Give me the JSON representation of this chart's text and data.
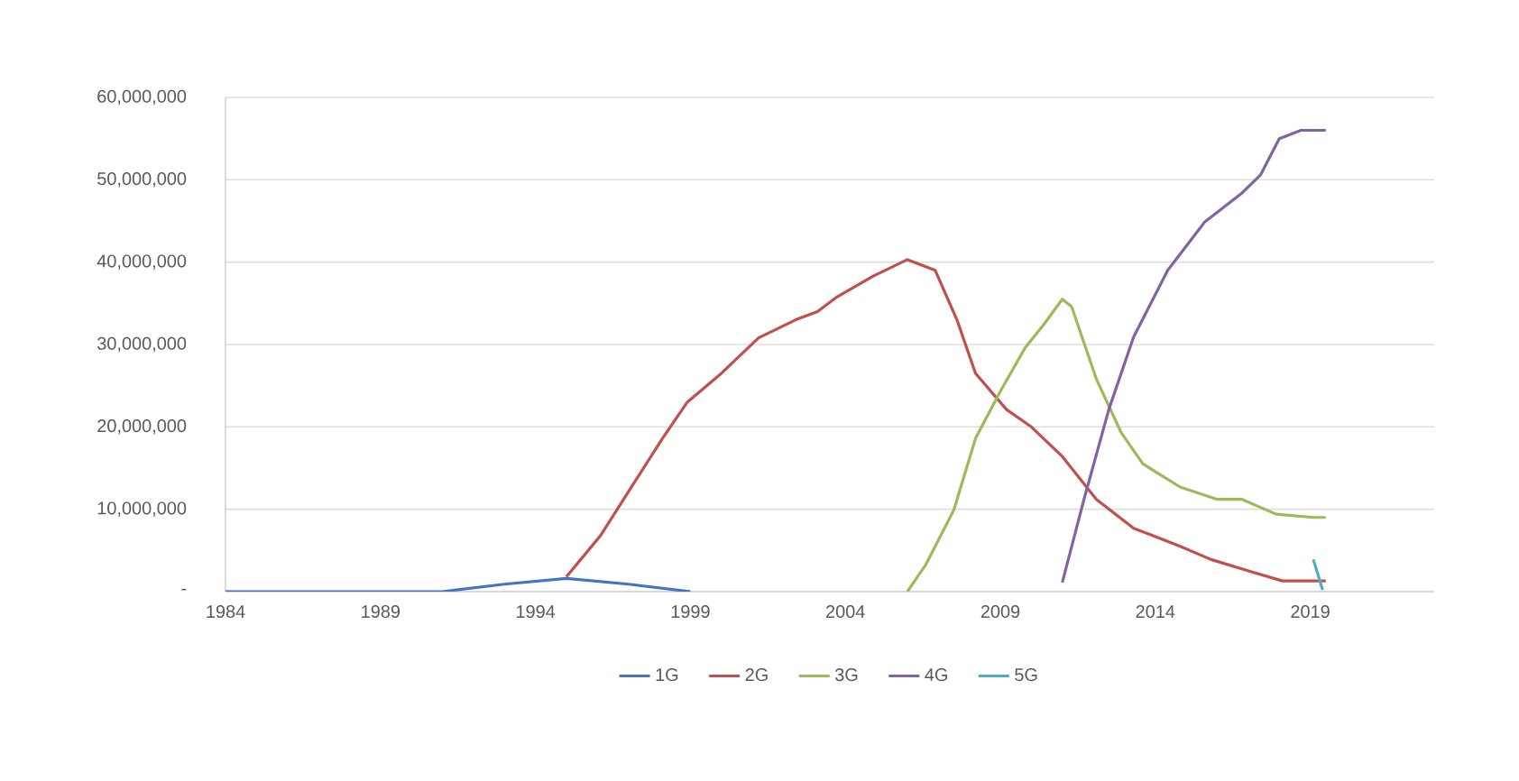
{
  "chart_data": {
    "type": "line",
    "xlim": [
      1984,
      2023
    ],
    "xticks": [
      1984,
      1989,
      1994,
      1999,
      2004,
      2009,
      2014,
      2019
    ],
    "ylim": [
      0,
      60000000
    ],
    "yticks": [
      {
        "value": 0,
        "label": "-"
      },
      {
        "value": 10000000,
        "label": "10,000,000"
      },
      {
        "value": 20000000,
        "label": "20,000,000"
      },
      {
        "value": 30000000,
        "label": "30,000,000"
      },
      {
        "value": 40000000,
        "label": "40,000,000"
      },
      {
        "value": 50000000,
        "label": "50,000,000"
      },
      {
        "value": 60000000,
        "label": "60,000,000"
      }
    ],
    "grid": "y",
    "legend": "bottom",
    "marker": "none",
    "line_style": "solid",
    "series": [
      {
        "name": "1G",
        "color": "#4472c4",
        "x": [
          1984,
          1991,
          1993,
          1995,
          1997,
          1999
        ],
        "values": [
          0,
          0,
          900000,
          1600000,
          900000,
          0
        ]
      },
      {
        "name": "2G",
        "color": "#c0504d",
        "x": [
          1995,
          1996.1,
          1997.1,
          1998.1,
          1998.9,
          2000,
          2001.2,
          2002.4,
          2003.1,
          2003.7,
          2004.9,
          2006,
          2006.9,
          2007.6,
          2008.2,
          2009.2,
          2010,
          2011,
          2012.1,
          2013.3,
          2014.8,
          2015.8,
          2017.1,
          2018.1,
          2019.5
        ],
        "values": [
          1800000,
          6800000,
          12700000,
          18600000,
          23000000,
          26500000,
          30800000,
          33000000,
          34000000,
          35700000,
          38300000,
          40300000,
          39000000,
          33000000,
          26500000,
          22100000,
          20000000,
          16400000,
          11200000,
          7700000,
          5500000,
          3900000,
          2400000,
          1300000,
          1300000
        ]
      },
      {
        "name": "3G",
        "color": "#9bbb59",
        "x": [
          2006,
          2006.6,
          2007.5,
          2008.2,
          2009,
          2009.8,
          2010.4,
          2011,
          2011.3,
          2012.1,
          2012.9,
          2013.6,
          2014.8,
          2016,
          2016.8,
          2017.9,
          2019.1,
          2019.5
        ],
        "values": [
          0,
          3300000,
          9900000,
          18600000,
          24300000,
          29600000,
          32400000,
          35500000,
          34600000,
          25800000,
          19300000,
          15500000,
          12700000,
          11200000,
          11200000,
          9400000,
          9000000,
          9000000
        ]
      },
      {
        "name": "4G",
        "color": "#8064a2",
        "x": [
          2011,
          2011.7,
          2012.5,
          2013.3,
          2014.4,
          2015.6,
          2016.8,
          2017.4,
          2018,
          2018.7,
          2019.5
        ],
        "values": [
          1100000,
          11200000,
          22100000,
          30900000,
          39000000,
          44900000,
          48400000,
          50600000,
          55000000,
          56000000,
          56000000
        ]
      },
      {
        "name": "5G",
        "color": "#4bacc6",
        "x": [
          2019.1,
          2019.4
        ],
        "values": [
          3900000,
          200000
        ]
      }
    ]
  }
}
